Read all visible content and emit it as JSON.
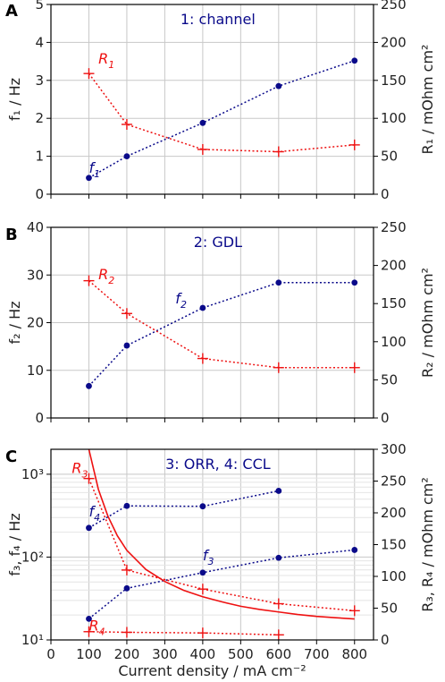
{
  "colors": {
    "f": "#0a0a8a",
    "r": "#ee1111",
    "grid": "#c8c8c8"
  },
  "x_axis": {
    "label": "Current density / mA cm⁻²",
    "ticks": [
      0,
      100,
      200,
      300,
      400,
      500,
      600,
      700,
      800
    ],
    "tick_labels": [
      "0",
      "100",
      "200",
      "300",
      "400",
      "500",
      "600",
      "700",
      "800"
    ],
    "range": [
      0,
      850
    ]
  },
  "chart_data": [
    {
      "panel": "A",
      "type": "line",
      "title": "1: channel",
      "ylabel": "f₁ / Hz",
      "y2label": "R₁ / mOhm cm²",
      "ylim": [
        0,
        5
      ],
      "y2lim": [
        0,
        250
      ],
      "yticks": [
        0,
        1,
        2,
        3,
        4,
        5
      ],
      "y2ticks": [
        0,
        50,
        100,
        150,
        200,
        250
      ],
      "yscale": "linear",
      "grid": true,
      "x": [
        100,
        200,
        400,
        600,
        800
      ],
      "series": [
        {
          "name": "f₁",
          "axis": "left",
          "marker": "circle",
          "style": "dotted",
          "color": "#0a0a8a",
          "x": [
            100,
            200,
            400,
            600,
            800
          ],
          "values": [
            0.43,
            1.0,
            1.88,
            2.85,
            3.52
          ]
        },
        {
          "name": "R₁",
          "axis": "right",
          "marker": "plus",
          "style": "dotted",
          "color": "#ee1111",
          "x": [
            100,
            200,
            400,
            600,
            800
          ],
          "values": [
            159,
            92,
            59,
            56,
            65
          ]
        }
      ],
      "annotations": [
        {
          "base": "f",
          "sub": "1",
          "x": 100,
          "y": 0.57,
          "axis": "left",
          "color": "#0a0a8a"
        },
        {
          "base": "R",
          "sub": "1",
          "x": 125,
          "y": 172,
          "axis": "right",
          "color": "#ee1111"
        }
      ]
    },
    {
      "panel": "B",
      "type": "line",
      "title": "2: GDL",
      "ylabel": "f₂ / Hz",
      "y2label": "R₂ / mOhm cm²",
      "ylim": [
        0,
        40
      ],
      "y2lim": [
        0,
        250
      ],
      "yticks": [
        0,
        10,
        20,
        30,
        40
      ],
      "y2ticks": [
        0,
        50,
        100,
        150,
        200,
        250
      ],
      "yscale": "linear",
      "grid": true,
      "x": [
        100,
        200,
        400,
        600,
        800
      ],
      "series": [
        {
          "name": "f₂",
          "axis": "left",
          "marker": "circle",
          "style": "dotted",
          "color": "#0a0a8a",
          "x": [
            100,
            200,
            400,
            600,
            800
          ],
          "values": [
            6.7,
            15.2,
            23.1,
            28.4,
            28.4
          ]
        },
        {
          "name": "R₂",
          "axis": "right",
          "marker": "plus",
          "style": "dotted",
          "color": "#ee1111",
          "x": [
            100,
            200,
            400,
            600,
            800
          ],
          "values": [
            180,
            137,
            78,
            66,
            66
          ]
        }
      ],
      "annotations": [
        {
          "base": "f",
          "sub": "2",
          "x": 328,
          "y": 24.0,
          "axis": "left",
          "color": "#0a0a8a"
        },
        {
          "base": "R",
          "sub": "2",
          "x": 125,
          "y": 182,
          "axis": "right",
          "color": "#ee1111"
        }
      ]
    },
    {
      "panel": "C",
      "type": "line",
      "title": "3: ORR, 4: CCL",
      "ylabel": "f₃, f₄ / Hz",
      "y2label": "R₃, R₄ / mOhm cm²",
      "ylim": [
        10,
        2000
      ],
      "y2lim": [
        0,
        300
      ],
      "yticks": [
        10,
        100,
        1000
      ],
      "ytick_labels": [
        "10¹",
        "10²",
        "10³"
      ],
      "y2ticks": [
        0,
        50,
        100,
        150,
        200,
        250,
        300
      ],
      "yscale": "log",
      "grid": true,
      "x": [
        100,
        200,
        400,
        600,
        800
      ],
      "series": [
        {
          "name": "f₄",
          "axis": "left",
          "marker": "circle",
          "style": "dotted",
          "color": "#0a0a8a",
          "x": [
            100,
            200,
            400,
            600
          ],
          "values": [
            225,
            415,
            410,
            630
          ]
        },
        {
          "name": "f₃",
          "axis": "left",
          "marker": "circle",
          "style": "dotted",
          "color": "#0a0a8a",
          "x": [
            100,
            200,
            400,
            600,
            800
          ],
          "values": [
            18,
            42,
            65,
            98,
            122
          ]
        },
        {
          "name": "R₃",
          "axis": "right",
          "marker": "plus",
          "style": "dotted",
          "color": "#ee1111",
          "x": [
            100,
            200,
            400,
            600,
            800
          ],
          "values": [
            254,
            110,
            80,
            57,
            46
          ]
        },
        {
          "name": "R₄",
          "axis": "right",
          "marker": "plus",
          "style": "dotted",
          "color": "#ee1111",
          "x": [
            100,
            200,
            400,
            600
          ],
          "values": [
            13,
            12,
            11,
            8
          ]
        },
        {
          "name": "R₃ fit",
          "axis": "right",
          "marker": "none",
          "style": "solid",
          "color": "#ee1111",
          "x": [
            100,
            125,
            150,
            175,
            200,
            250,
            300,
            350,
            400,
            450,
            500,
            550,
            600,
            650,
            700,
            750,
            800
          ],
          "values": [
            300,
            237,
            195,
            164,
            141,
            111,
            92,
            78,
            68,
            60,
            53,
            48,
            44,
            40,
            37,
            35,
            33
          ]
        }
      ],
      "annotations": [
        {
          "base": "R",
          "sub": "3",
          "x": 55,
          "y": 1030,
          "axis": "left",
          "color": "#ee1111"
        },
        {
          "base": "f",
          "sub": "4",
          "x": 100,
          "y": 310,
          "axis": "left",
          "color": "#0a0a8a"
        },
        {
          "base": "f",
          "sub": "3",
          "x": 400,
          "y": 92,
          "axis": "left",
          "color": "#0a0a8a"
        },
        {
          "base": "R",
          "sub": "4",
          "x": 100,
          "y": 15,
          "axis": "right",
          "color": "#ee1111"
        }
      ]
    }
  ]
}
